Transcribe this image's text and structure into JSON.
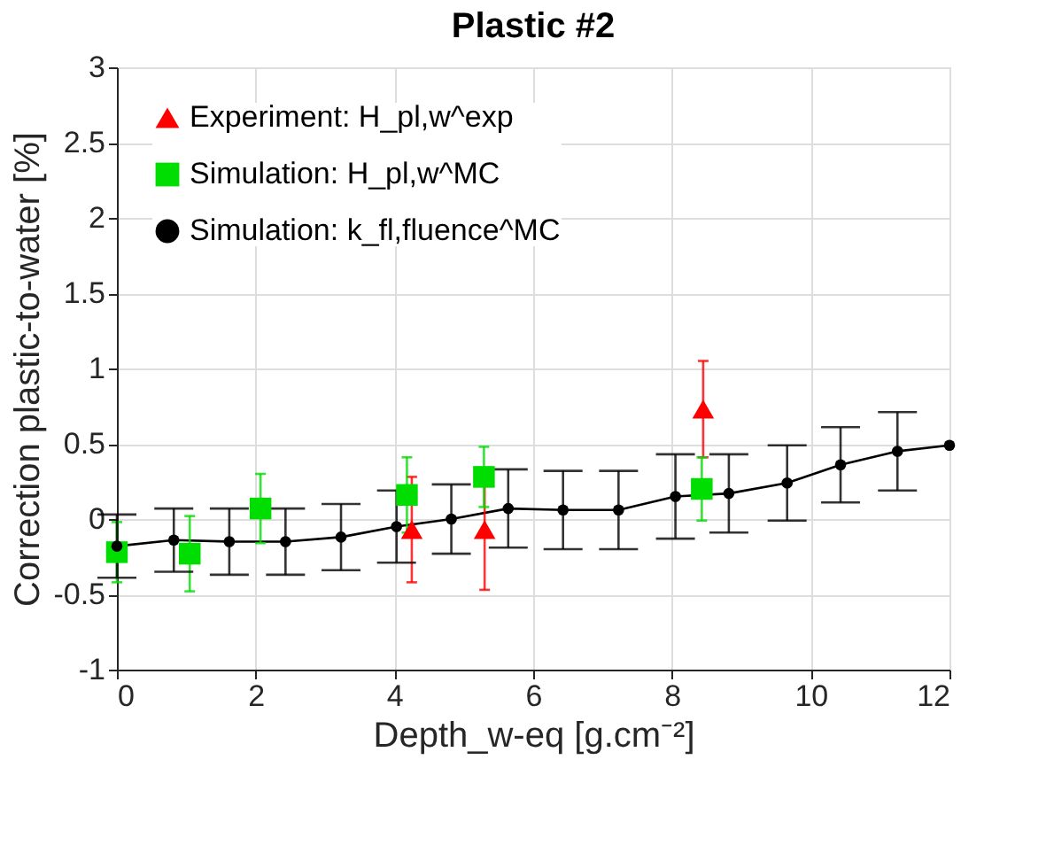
{
  "chart_data": {
    "type": "scatter",
    "title": "Plastic #2",
    "xlabel": "Depth_w-eq [g.cm⁻²]",
    "ylabel": "Correction plastic-to-water [%]",
    "xlim": [
      0,
      12
    ],
    "xticks": [
      0,
      2,
      4,
      6,
      8,
      10,
      12
    ],
    "ylim": [
      -1,
      3
    ],
    "yticks": [
      -1,
      -0.5,
      0,
      0.5,
      1,
      1.5,
      2,
      2.5,
      3
    ],
    "grid": true,
    "legend": "top left",
    "series": [
      {
        "name": "Experiment: H_pl,w^exp",
        "marker": "triangle",
        "color": "#ff0000",
        "x": [
          4.25,
          5.3,
          8.45
        ],
        "values": [
          -0.07,
          -0.07,
          0.73
        ],
        "errors": [
          0.35,
          0.4,
          0.32
        ]
      },
      {
        "name": "Simulation: H_pl,w^MC",
        "marker": "square",
        "color": "#00dd00",
        "x": [
          0,
          1.05,
          2.07,
          4.18,
          5.29,
          8.43
        ],
        "values": [
          -0.22,
          -0.23,
          0.07,
          0.16,
          0.28,
          0.2
        ],
        "errors": [
          0.2,
          0.25,
          0.23,
          0.25,
          0.2,
          0.21
        ]
      },
      {
        "name": "Simulation: k_fl,fluence^MC",
        "type": "line",
        "marker": "circle",
        "color": "#000000",
        "x": [
          0,
          0.82,
          1.62,
          2.43,
          3.23,
          4.03,
          4.82,
          5.64,
          6.43,
          7.23,
          8.05,
          8.82,
          9.66,
          10.43,
          11.25,
          12
        ],
        "values": [
          -0.18,
          -0.14,
          -0.15,
          -0.15,
          -0.12,
          -0.05,
          0.0,
          0.07,
          0.06,
          0.06,
          0.15,
          0.17,
          0.24,
          0.36,
          0.45,
          0.49
        ],
        "errors": [
          0.21,
          0.21,
          0.22,
          0.22,
          0.22,
          0.24,
          0.23,
          0.26,
          0.26,
          0.26,
          0.28,
          0.26,
          0.25,
          0.25,
          0.26,
          null
        ]
      }
    ]
  }
}
